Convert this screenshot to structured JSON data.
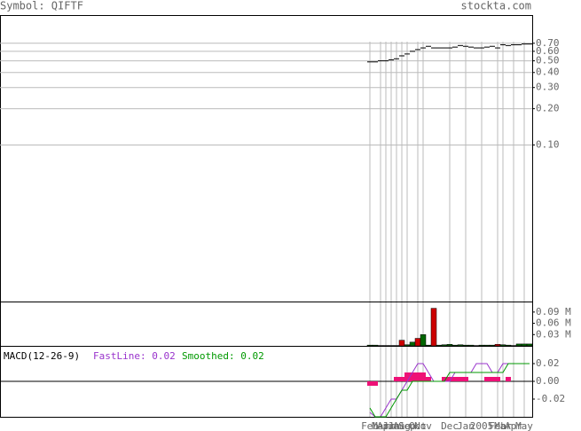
{
  "header": {
    "symbol": "Symbol: QIFTF",
    "site": "stockta.com"
  },
  "chart_data": [
    {
      "type": "price",
      "log_scale": true,
      "color": "#000000",
      "categories": [
        "Feb",
        null,
        "Mar",
        "Apr",
        "Jun",
        "Jul",
        "Aug",
        "Sep",
        null,
        "Oct",
        "Nov",
        null,
        null,
        null,
        null,
        "Dec",
        null,
        null,
        "Jan",
        null,
        null,
        "2005",
        null,
        null,
        "Feb",
        "Mar",
        null,
        "Apr",
        null,
        "May",
        null
      ],
      "values": [
        0.49,
        0.49,
        0.5,
        0.5,
        0.51,
        0.52,
        0.55,
        0.57,
        0.6,
        0.62,
        0.64,
        0.66,
        0.64,
        0.64,
        0.64,
        0.64,
        0.65,
        0.67,
        0.66,
        0.65,
        0.64,
        0.64,
        0.65,
        0.66,
        0.64,
        0.68,
        0.67,
        0.68,
        0.68,
        0.69,
        0.69
      ],
      "ylim": [
        0.005,
        1.2
      ],
      "yticks": [
        {
          "value": 0.7,
          "label": "0.70"
        },
        {
          "value": 0.6,
          "label": "0.60"
        },
        {
          "value": 0.5,
          "label": "0.50"
        },
        {
          "value": 0.4,
          "label": "0.40"
        },
        {
          "value": 0.3,
          "label": "0.30"
        },
        {
          "value": 0.2,
          "label": "0.20"
        },
        {
          "value": 0.1,
          "label": "0.10"
        }
      ],
      "grid": true
    },
    {
      "type": "volume",
      "values": [
        0.002,
        0.002,
        0.001,
        0.001,
        0.001,
        0.001,
        0.015,
        0.003,
        0.01,
        0.02,
        0.03,
        0.002,
        0.1,
        0.002,
        0.003,
        0.004,
        0.002,
        0.003,
        0.002,
        0.002,
        0.001,
        0.002,
        0.002,
        0.002,
        0.004,
        0.003,
        0.002,
        0.001,
        0.005,
        0.005,
        0.005
      ],
      "colors": [
        "#006600",
        "#006600",
        "#006600",
        "#006600",
        "#006600",
        "#006600",
        "#cc0000",
        "#006600",
        "#006600",
        "#cc0000",
        "#006600",
        "#006600",
        "#cc0000",
        "#006600",
        "#006600",
        "#006600",
        "#006600",
        "#006600",
        "#006600",
        "#006600",
        "#006600",
        "#006600",
        "#006600",
        "#006600",
        "#cc0000",
        "#006600",
        "#006600",
        "#006600",
        "#006600",
        "#006600",
        "#006600"
      ],
      "ylim": [
        0,
        0.118
      ],
      "yticks": [
        {
          "value": 0.09,
          "label": "0.09 M"
        },
        {
          "value": 0.06,
          "label": "0.06 M"
        },
        {
          "value": 0.03,
          "label": "0.03 M"
        }
      ]
    },
    {
      "type": "macd",
      "title": "MACD(12-26-9)",
      "histogram": {
        "color": "#ee1177",
        "values": [
          -0.005,
          -0.005,
          0,
          0,
          0,
          0.005,
          0.005,
          0.01,
          0.01,
          0.01,
          0.01,
          0.005,
          0,
          0,
          0.005,
          0.005,
          0.005,
          0.005,
          0.005,
          0,
          0,
          0,
          0.005,
          0.005,
          0.005,
          0,
          0.005,
          0,
          0,
          0,
          0
        ]
      },
      "series": [
        {
          "name": "FastLine: 0.02",
          "color": "#9933cc",
          "values": [
            -0.035,
            -0.04,
            -0.04,
            -0.03,
            -0.02,
            -0.02,
            -0.01,
            0,
            0.01,
            0.02,
            0.02,
            0.01,
            0,
            0,
            0,
            0,
            0.01,
            0.01,
            0.01,
            0.01,
            0.02,
            0.02,
            0.02,
            0.01,
            0.01,
            0.02,
            0.02,
            0.02,
            0.02,
            0.02,
            0.02
          ]
        },
        {
          "name": "Smoothed: 0.02",
          "color": "#009900",
          "values": [
            -0.03,
            -0.04,
            -0.04,
            -0.04,
            -0.03,
            -0.02,
            -0.01,
            -0.01,
            0,
            0,
            0,
            0,
            0,
            0,
            0,
            0.01,
            0.01,
            0.01,
            0.01,
            0.01,
            0.01,
            0.01,
            0.01,
            0.01,
            0.01,
            0.01,
            0.02,
            0.02,
            0.02,
            0.02,
            0.02
          ]
        }
      ],
      "ylim": [
        -0.04,
        0.04
      ],
      "yticks": [
        0.02,
        {
          "value": 0,
          "label": "0.00"
        },
        -0.02
      ]
    }
  ]
}
